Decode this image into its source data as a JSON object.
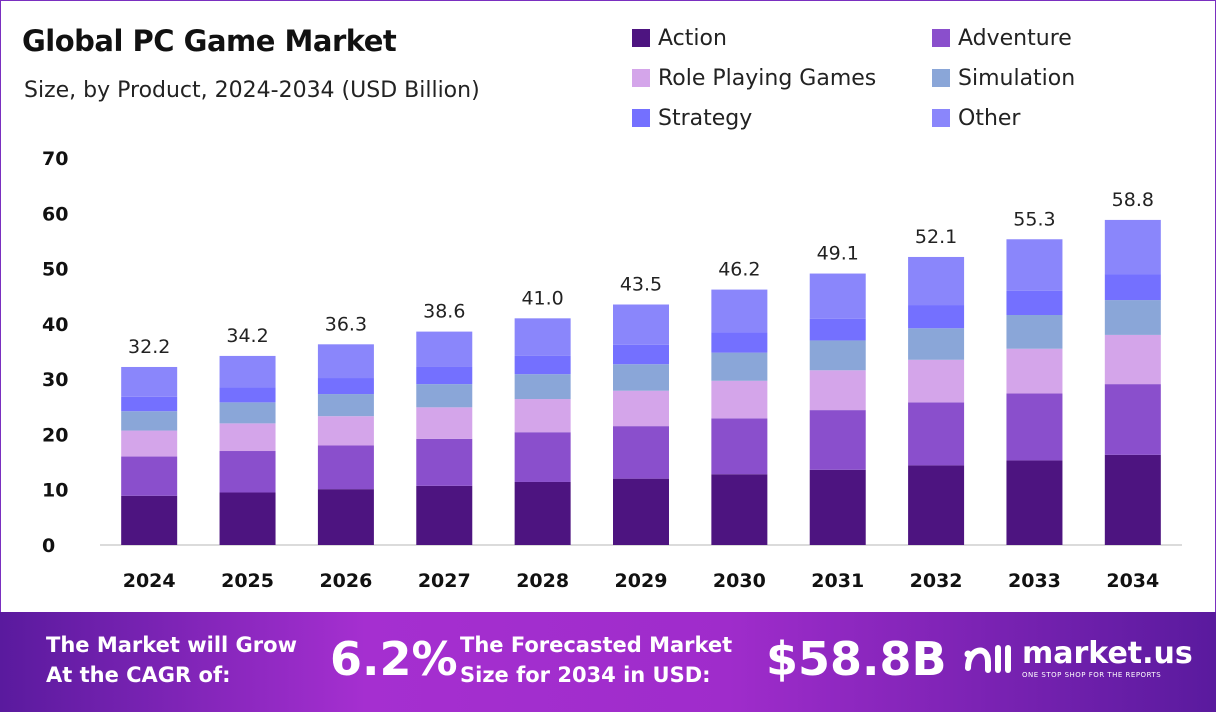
{
  "chart_data": {
    "type": "bar",
    "stacked": true,
    "title": "Global PC Game Market",
    "subtitle": "Size, by Product, 2024-2034 (USD Billion)",
    "categories": [
      "2024",
      "2025",
      "2026",
      "2027",
      "2028",
      "2029",
      "2030",
      "2031",
      "2032",
      "2033",
      "2034"
    ],
    "totals": [
      "32.2",
      "34.2",
      "36.3",
      "38.6",
      "41.0",
      "43.5",
      "46.2",
      "49.1",
      "52.1",
      "55.3",
      "58.8"
    ],
    "series": [
      {
        "name": "Action",
        "color": "#4d1480",
        "values": [
          8.9,
          9.5,
          10.1,
          10.7,
          11.4,
          12.0,
          12.8,
          13.6,
          14.4,
          15.3,
          16.3
        ]
      },
      {
        "name": "Adventure",
        "color": "#8a4fcc",
        "values": [
          7.1,
          7.5,
          7.9,
          8.5,
          9.0,
          9.5,
          10.1,
          10.8,
          11.4,
          12.1,
          12.8
        ]
      },
      {
        "name": "Role Playing Games",
        "color": "#d4a5ea",
        "values": [
          4.7,
          5.0,
          5.3,
          5.7,
          6.0,
          6.4,
          6.8,
          7.2,
          7.7,
          8.1,
          8.9
        ]
      },
      {
        "name": "Simulation",
        "color": "#8aa6d8",
        "values": [
          3.5,
          3.8,
          4.0,
          4.2,
          4.5,
          4.8,
          5.1,
          5.4,
          5.7,
          6.1,
          6.3
        ]
      },
      {
        "name": "Strategy",
        "color": "#7470ff",
        "values": [
          2.6,
          2.7,
          2.9,
          3.1,
          3.3,
          3.5,
          3.7,
          3.9,
          4.2,
          4.4,
          4.7
        ]
      },
      {
        "name": "Other",
        "color": "#8a86fb",
        "values": [
          5.4,
          5.7,
          6.1,
          6.4,
          6.8,
          7.3,
          7.7,
          8.2,
          8.7,
          9.3,
          9.8
        ]
      }
    ],
    "ylim": [
      0,
      70
    ],
    "yticks": [
      "0",
      "10",
      "20",
      "30",
      "40",
      "50",
      "60",
      "70"
    ],
    "grid": false,
    "legend_position": "top-right"
  },
  "footer": {
    "cagr_text_1": "The Market will Grow",
    "cagr_text_2": "At the CAGR of:",
    "cagr_value": "6.2%",
    "forecast_text_1": "The Forecasted Market",
    "forecast_text_2": "Size for 2034 in USD:",
    "forecast_value": "$58.8B",
    "brand": "market.us",
    "tagline": "ONE STOP SHOP FOR THE REPORTS"
  }
}
